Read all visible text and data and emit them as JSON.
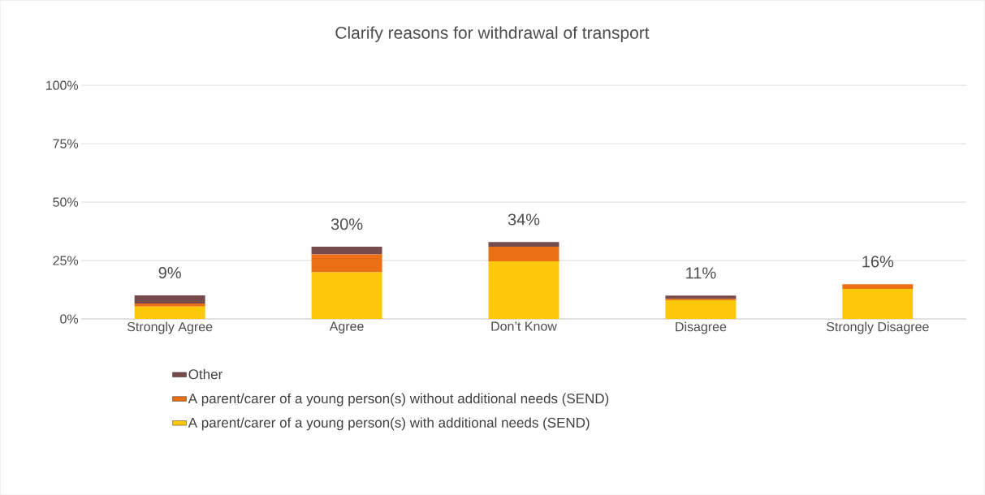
{
  "chart_data": {
    "type": "bar",
    "title": "Clarify reasons for withdrawal of transport",
    "categories": [
      "Strongly Agree",
      "Agree",
      "Don’t Know",
      "Disagree",
      "Strongly Disagree"
    ],
    "stacked": true,
    "series": [
      {
        "name": "A parent/carer of a young person(s) with additional needs (SEND)",
        "color": "#fec80a",
        "values": [
          5.3,
          20,
          24.7,
          8,
          12.9
        ]
      },
      {
        "name": "A parent/carer of a young person(s) without additional needs (SEND)",
        "color": "#eb7015",
        "values": [
          1.3,
          7.6,
          6.2,
          0.6,
          2
        ]
      },
      {
        "name": "Other",
        "color": "#764b4b",
        "values": [
          3.5,
          3.3,
          2,
          1.4,
          0
        ]
      }
    ],
    "totals": [
      "9%",
      "30%",
      "34%",
      "11%",
      "16%"
    ],
    "ylim": [
      0,
      100
    ],
    "yticks": [
      {
        "value": 0,
        "label": "0%"
      },
      {
        "value": 25,
        "label": "25%"
      },
      {
        "value": 50,
        "label": "50%"
      },
      {
        "value": 75,
        "label": "75%"
      },
      {
        "value": 100,
        "label": "100%"
      }
    ],
    "grid": "y",
    "legend": "bottom"
  }
}
